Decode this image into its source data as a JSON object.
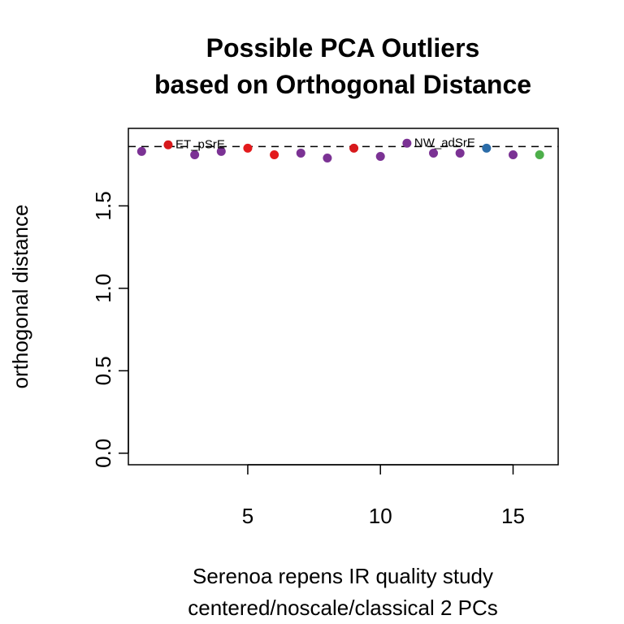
{
  "chart_data": {
    "type": "scatter",
    "title": [
      "Possible PCA Outliers",
      "based on Orthogonal Distance"
    ],
    "xlabel": [
      "Serenoa repens IR quality study",
      "centered/noscale/classical 2 PCs"
    ],
    "ylabel": "orthogonal distance",
    "xlim": [
      0.5,
      16.7
    ],
    "ylim": [
      -0.07,
      1.97
    ],
    "xticks": [
      5,
      10,
      15
    ],
    "yticks": [
      0.0,
      0.5,
      1.0,
      1.5
    ],
    "ytick_labels": [
      "0.0",
      "0.5",
      "1.0",
      "1.5"
    ],
    "cutoff": 1.86,
    "points": [
      {
        "x": 1,
        "y": 1.83,
        "color": "#7b3294"
      },
      {
        "x": 2,
        "y": 1.87,
        "color": "#d7191c",
        "label": "ET_pSrE"
      },
      {
        "x": 3,
        "y": 1.81,
        "color": "#7b3294"
      },
      {
        "x": 4,
        "y": 1.83,
        "color": "#7b3294"
      },
      {
        "x": 5,
        "y": 1.85,
        "color": "#e31a1c"
      },
      {
        "x": 6,
        "y": 1.81,
        "color": "#e31a1c"
      },
      {
        "x": 7,
        "y": 1.82,
        "color": "#7b3294"
      },
      {
        "x": 8,
        "y": 1.79,
        "color": "#7b3294"
      },
      {
        "x": 9,
        "y": 1.85,
        "color": "#d7191c"
      },
      {
        "x": 10,
        "y": 1.8,
        "color": "#7b3294"
      },
      {
        "x": 11,
        "y": 1.88,
        "color": "#7b3294",
        "label": "NW_adSrE"
      },
      {
        "x": 12,
        "y": 1.82,
        "color": "#7b3294"
      },
      {
        "x": 13,
        "y": 1.82,
        "color": "#7b3294"
      },
      {
        "x": 14,
        "y": 1.85,
        "color": "#2b6ca8"
      },
      {
        "x": 15,
        "y": 1.81,
        "color": "#7b3294"
      },
      {
        "x": 16,
        "y": 1.81,
        "color": "#4daf4a"
      }
    ],
    "grid": false
  }
}
